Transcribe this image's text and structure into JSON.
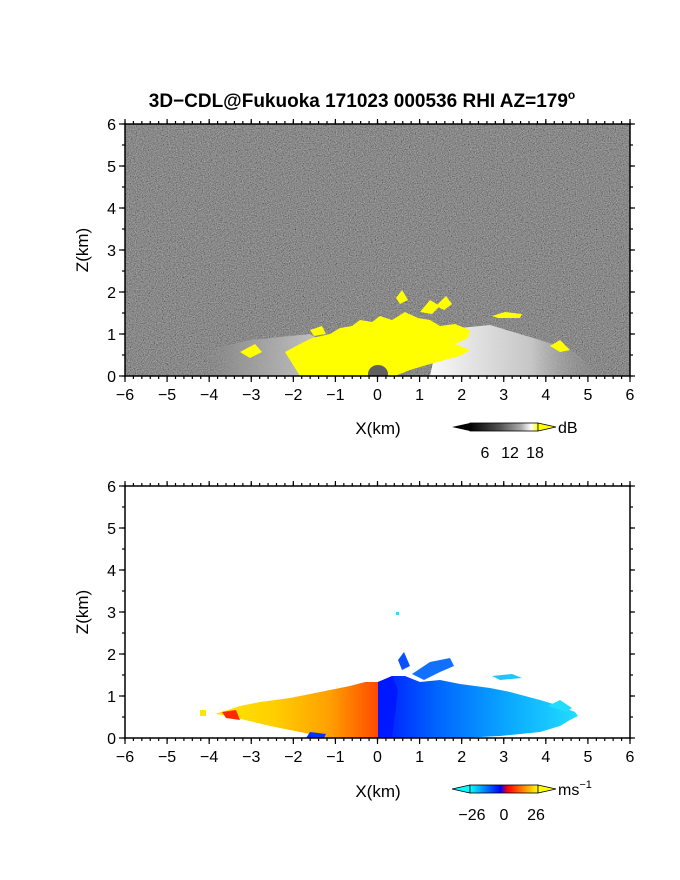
{
  "title": "3D−CDL@Fukuoka 171023 000536 RHI AZ=179",
  "title_superscript": "o",
  "chart_data": [
    {
      "type": "heatmap",
      "panel": "reflectivity",
      "xlabel": "X(km)",
      "ylabel": "Z(km)",
      "xlim": [
        -6,
        6
      ],
      "ylim": [
        0,
        6
      ],
      "x_ticks": [
        "−6",
        "−5",
        "−4",
        "−3",
        "−2",
        "−1",
        "0",
        "1",
        "2",
        "3",
        "4",
        "5",
        "6"
      ],
      "y_ticks": [
        "0",
        "1",
        "2",
        "3",
        "4",
        "5",
        "6"
      ],
      "background": "noise field (dark grey speckle) filling entire domain",
      "features": [
        {
          "region": "strong echo core (yellow, >=18 dB)",
          "x_range": [
            -1.5,
            2.2
          ],
          "z_range": [
            0,
            1.3
          ]
        },
        {
          "region": "isolated yellow patches aloft",
          "x_range": [
            0.4,
            1.8
          ],
          "z_range": [
            1.5,
            2.1
          ]
        },
        {
          "region": "light grey weaker returns",
          "x_range": [
            -4,
            4.6
          ],
          "z_range": [
            0,
            0.8
          ]
        }
      ],
      "colorbar": {
        "unit": "dB",
        "tick_labels": [
          "6",
          "12",
          "18"
        ],
        "colors": [
          "#000000",
          "#555555",
          "#aaaaaa",
          "#ffffff",
          "#ffff00"
        ]
      }
    },
    {
      "type": "heatmap",
      "panel": "doppler_velocity",
      "xlabel": "X(km)",
      "ylabel": "Z(km)",
      "xlim": [
        -6,
        6
      ],
      "ylim": [
        0,
        6
      ],
      "x_ticks": [
        "−6",
        "−5",
        "−4",
        "−3",
        "−2",
        "−1",
        "0",
        "1",
        "2",
        "3",
        "4",
        "5",
        "6"
      ],
      "y_ticks": [
        "0",
        "1",
        "2",
        "3",
        "4",
        "5",
        "6"
      ],
      "background": "no data (white)",
      "features": [
        {
          "region": "positive velocity (yellow-orange)",
          "x_range": [
            -4.2,
            0
          ],
          "z_range": [
            0,
            1.3
          ]
        },
        {
          "region": "negative velocity (blue-cyan)",
          "x_range": [
            0,
            4.7
          ],
          "z_range": [
            0,
            2.1
          ]
        }
      ],
      "colorbar": {
        "unit": "ms",
        "unit_superscript": "−1",
        "tick_labels": [
          "−26",
          "0",
          "26"
        ],
        "colors": [
          "#00ffff",
          "#0000ff",
          "#ff0000",
          "#ffff00"
        ]
      }
    }
  ]
}
